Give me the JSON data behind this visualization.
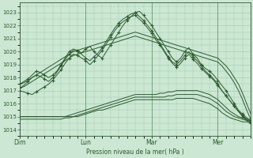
{
  "bg_color": "#cce8d4",
  "grid_color": "#9dc8aa",
  "line_color": "#2d5a2d",
  "marker_color": "#2d5a2d",
  "ylabel_ticks": [
    1014,
    1015,
    1016,
    1017,
    1018,
    1019,
    1020,
    1021,
    1022,
    1023
  ],
  "ylim": [
    1013.5,
    1023.8
  ],
  "xlabel": "Pression niveau de la mer( hPa )",
  "xtick_labels": [
    "Dim",
    "Lun",
    "Mar",
    "Mer"
  ],
  "xtick_positions": [
    0,
    48,
    96,
    144
  ],
  "xlim": [
    0,
    168
  ],
  "n_points": 57,
  "series": {
    "marker": [
      [
        1017.5,
        1017.7,
        1017.9,
        1018.2,
        1018.5,
        1018.4,
        1018.2,
        1018.0,
        1018.2,
        1018.5,
        1019.0,
        1019.5,
        1020.0,
        1020.2,
        1020.1,
        1019.9,
        1020.2,
        1020.4,
        1020.0,
        1019.7,
        1019.5,
        1020.0,
        1020.5,
        1021.0,
        1021.5,
        1022.0,
        1022.4,
        1022.7,
        1023.0,
        1023.1,
        1022.8,
        1022.4,
        1022.0,
        1021.5,
        1021.0,
        1020.5,
        1020.0,
        1019.5,
        1019.2,
        1019.5,
        1020.0,
        1020.3,
        1019.8,
        1019.5,
        1019.0,
        1018.7,
        1018.5,
        1018.2,
        1017.8,
        1017.4,
        1017.0,
        1016.5,
        1016.0,
        1015.5,
        1015.2,
        1014.9,
        1014.7
      ],
      [
        1017.2,
        1017.4,
        1017.7,
        1018.0,
        1018.2,
        1018.1,
        1017.9,
        1017.7,
        1018.0,
        1018.4,
        1018.9,
        1019.4,
        1019.8,
        1020.1,
        1020.0,
        1019.8,
        1019.5,
        1019.3,
        1019.6,
        1019.9,
        1020.3,
        1020.8,
        1021.3,
        1021.8,
        1022.2,
        1022.5,
        1022.7,
        1022.9,
        1023.0,
        1022.7,
        1022.4,
        1022.0,
        1021.6,
        1021.1,
        1020.6,
        1020.1,
        1019.6,
        1019.2,
        1019.0,
        1019.3,
        1019.7,
        1020.0,
        1019.6,
        1019.3,
        1018.9,
        1018.5,
        1018.2,
        1017.9,
        1017.5,
        1017.0,
        1016.6,
        1016.2,
        1015.8,
        1015.4,
        1015.0,
        1014.7,
        1014.5
      ],
      [
        1017.0,
        1016.9,
        1016.8,
        1016.7,
        1016.9,
        1017.1,
        1017.3,
        1017.5,
        1017.8,
        1018.2,
        1018.6,
        1019.1,
        1019.5,
        1019.8,
        1019.7,
        1019.5,
        1019.3,
        1019.0,
        1019.3,
        1019.7,
        1020.1,
        1020.6,
        1021.1,
        1021.6,
        1022.0,
        1022.3,
        1022.5,
        1022.7,
        1022.8,
        1022.5,
        1022.2,
        1021.8,
        1021.4,
        1020.9,
        1020.5,
        1020.0,
        1019.5,
        1019.1,
        1018.8,
        1019.1,
        1019.5,
        1019.8,
        1019.4,
        1019.1,
        1018.7,
        1018.4,
        1018.1,
        1017.8,
        1017.4,
        1017.0,
        1016.6,
        1016.2,
        1015.8,
        1015.4,
        1015.1,
        1014.8,
        1014.6
      ]
    ],
    "smooth_rising": [
      [
        1017.5,
        1017.6,
        1017.8,
        1018.0,
        1018.2,
        1018.4,
        1018.6,
        1018.8,
        1019.0,
        1019.2,
        1019.4,
        1019.6,
        1019.8,
        1020.0,
        1020.1,
        1020.2,
        1020.3,
        1020.4,
        1020.5,
        1020.6,
        1020.7,
        1020.8,
        1020.9,
        1021.0,
        1021.1,
        1021.2,
        1021.3,
        1021.4,
        1021.5,
        1021.4,
        1021.3,
        1021.2,
        1021.1,
        1021.0,
        1020.9,
        1020.8,
        1020.7,
        1020.6,
        1020.5,
        1020.4,
        1020.3,
        1020.2,
        1020.1,
        1020.0,
        1019.9,
        1019.8,
        1019.7,
        1019.6,
        1019.5,
        1019.2,
        1018.9,
        1018.5,
        1018.0,
        1017.5,
        1016.8,
        1016.0,
        1015.2
      ],
      [
        1017.2,
        1017.3,
        1017.5,
        1017.7,
        1017.9,
        1018.1,
        1018.3,
        1018.5,
        1018.7,
        1018.9,
        1019.1,
        1019.3,
        1019.5,
        1019.7,
        1019.8,
        1019.9,
        1020.0,
        1020.1,
        1020.2,
        1020.3,
        1020.4,
        1020.5,
        1020.6,
        1020.7,
        1020.8,
        1020.9,
        1021.0,
        1021.1,
        1021.2,
        1021.1,
        1021.0,
        1020.9,
        1020.8,
        1020.7,
        1020.6,
        1020.5,
        1020.4,
        1020.3,
        1020.2,
        1020.1,
        1020.0,
        1019.9,
        1019.8,
        1019.7,
        1019.6,
        1019.5,
        1019.4,
        1019.3,
        1019.2,
        1018.9,
        1018.5,
        1018.1,
        1017.6,
        1017.0,
        1016.3,
        1015.5,
        1014.8
      ]
    ],
    "smooth_flat": [
      [
        1015.0,
        1015.0,
        1015.0,
        1015.0,
        1015.0,
        1015.0,
        1015.0,
        1015.0,
        1015.0,
        1015.0,
        1015.0,
        1015.0,
        1015.1,
        1015.2,
        1015.3,
        1015.4,
        1015.5,
        1015.6,
        1015.7,
        1015.8,
        1015.9,
        1016.0,
        1016.1,
        1016.2,
        1016.3,
        1016.4,
        1016.5,
        1016.6,
        1016.7,
        1016.7,
        1016.7,
        1016.7,
        1016.7,
        1016.7,
        1016.8,
        1016.8,
        1016.9,
        1016.9,
        1017.0,
        1017.0,
        1017.0,
        1017.0,
        1017.0,
        1017.0,
        1016.9,
        1016.8,
        1016.7,
        1016.5,
        1016.3,
        1016.0,
        1015.7,
        1015.4,
        1015.2,
        1015.0,
        1014.9,
        1014.8,
        1014.8
      ],
      [
        1015.0,
        1015.0,
        1015.0,
        1015.0,
        1015.0,
        1015.0,
        1015.0,
        1015.0,
        1015.0,
        1015.0,
        1015.0,
        1015.0,
        1015.0,
        1015.0,
        1015.1,
        1015.2,
        1015.3,
        1015.4,
        1015.5,
        1015.6,
        1015.7,
        1015.8,
        1015.9,
        1016.0,
        1016.1,
        1016.2,
        1016.3,
        1016.4,
        1016.5,
        1016.5,
        1016.5,
        1016.5,
        1016.5,
        1016.5,
        1016.5,
        1016.5,
        1016.6,
        1016.6,
        1016.7,
        1016.7,
        1016.7,
        1016.7,
        1016.7,
        1016.7,
        1016.6,
        1016.5,
        1016.4,
        1016.2,
        1016.0,
        1015.7,
        1015.4,
        1015.2,
        1015.0,
        1014.9,
        1014.8,
        1014.7,
        1014.7
      ],
      [
        1014.8,
        1014.8,
        1014.8,
        1014.8,
        1014.8,
        1014.8,
        1014.8,
        1014.8,
        1014.8,
        1014.8,
        1014.8,
        1014.9,
        1014.9,
        1015.0,
        1015.0,
        1015.1,
        1015.2,
        1015.3,
        1015.4,
        1015.5,
        1015.5,
        1015.6,
        1015.7,
        1015.8,
        1015.9,
        1016.0,
        1016.1,
        1016.2,
        1016.3,
        1016.3,
        1016.3,
        1016.3,
        1016.3,
        1016.3,
        1016.3,
        1016.3,
        1016.3,
        1016.3,
        1016.4,
        1016.4,
        1016.4,
        1016.4,
        1016.4,
        1016.3,
        1016.2,
        1016.1,
        1016.0,
        1015.8,
        1015.6,
        1015.3,
        1015.1,
        1014.9,
        1014.8,
        1014.7,
        1014.6,
        1014.6,
        1014.5
      ]
    ]
  }
}
